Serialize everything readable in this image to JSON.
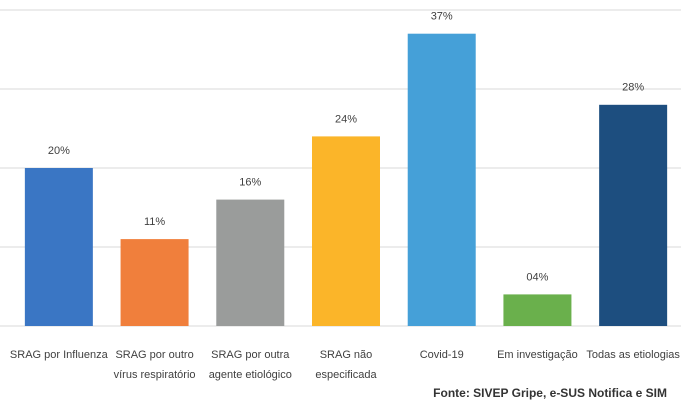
{
  "chart_data": {
    "type": "bar",
    "categories": [
      [
        "SRAG por Influenza"
      ],
      [
        "SRAG por outro",
        "vírus respiratório"
      ],
      [
        "SRAG por outra",
        "agente etiológico"
      ],
      [
        "SRAG não",
        "especificada"
      ],
      [
        "Covid-19"
      ],
      [
        "Em investigação"
      ],
      [
        "Todas as etiologias"
      ]
    ],
    "values": [
      20,
      11,
      16,
      24,
      37,
      4,
      28
    ],
    "value_labels": [
      "20%",
      "11%",
      "16%",
      "24%",
      "37%",
      "04%",
      "28%"
    ],
    "colors": [
      "#3a76c4",
      "#f07f3c",
      "#9a9c9b",
      "#fbb529",
      "#45a0d8",
      "#6ab04c",
      "#1d4e7f"
    ],
    "ylim": [
      0,
      40
    ],
    "yticks": [
      0,
      10,
      20,
      30,
      40
    ],
    "grid": true,
    "source": "Fonte: SIVEP Gripe, e-SUS Notifica e SIM"
  }
}
